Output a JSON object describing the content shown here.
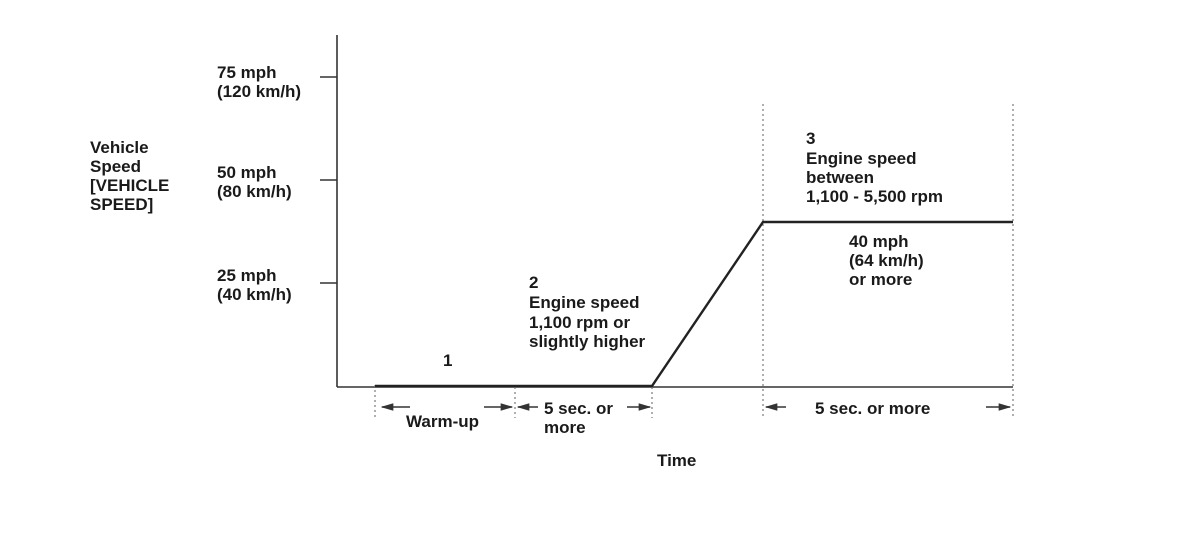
{
  "y_axis": {
    "title_lines": [
      "Vehicle",
      "Speed",
      "[VEHICLE",
      "SPEED]"
    ],
    "ticks": [
      {
        "lines": [
          "75 mph",
          "(120 km/h)"
        ]
      },
      {
        "lines": [
          "50 mph",
          "(80 km/h)"
        ]
      },
      {
        "lines": [
          "25 mph",
          "(40 km/h)"
        ]
      }
    ]
  },
  "x_axis": {
    "title": "Time"
  },
  "phases": [
    {
      "number": "1",
      "desc_lines": [],
      "duration_lines": [
        "Warm-up"
      ]
    },
    {
      "number": "2",
      "desc_lines": [
        "Engine speed",
        "1,100 rpm or",
        "slightly higher"
      ],
      "duration_lines": [
        "5 sec. or",
        "more"
      ]
    },
    {
      "number": "3",
      "desc_lines": [
        "Engine speed",
        "between",
        "1,100 - 5,500 rpm"
      ],
      "duration_lines": [
        "5 sec. or more"
      ]
    }
  ],
  "plateau_label_lines": [
    "40 mph",
    "(64 km/h)",
    "or more"
  ]
}
